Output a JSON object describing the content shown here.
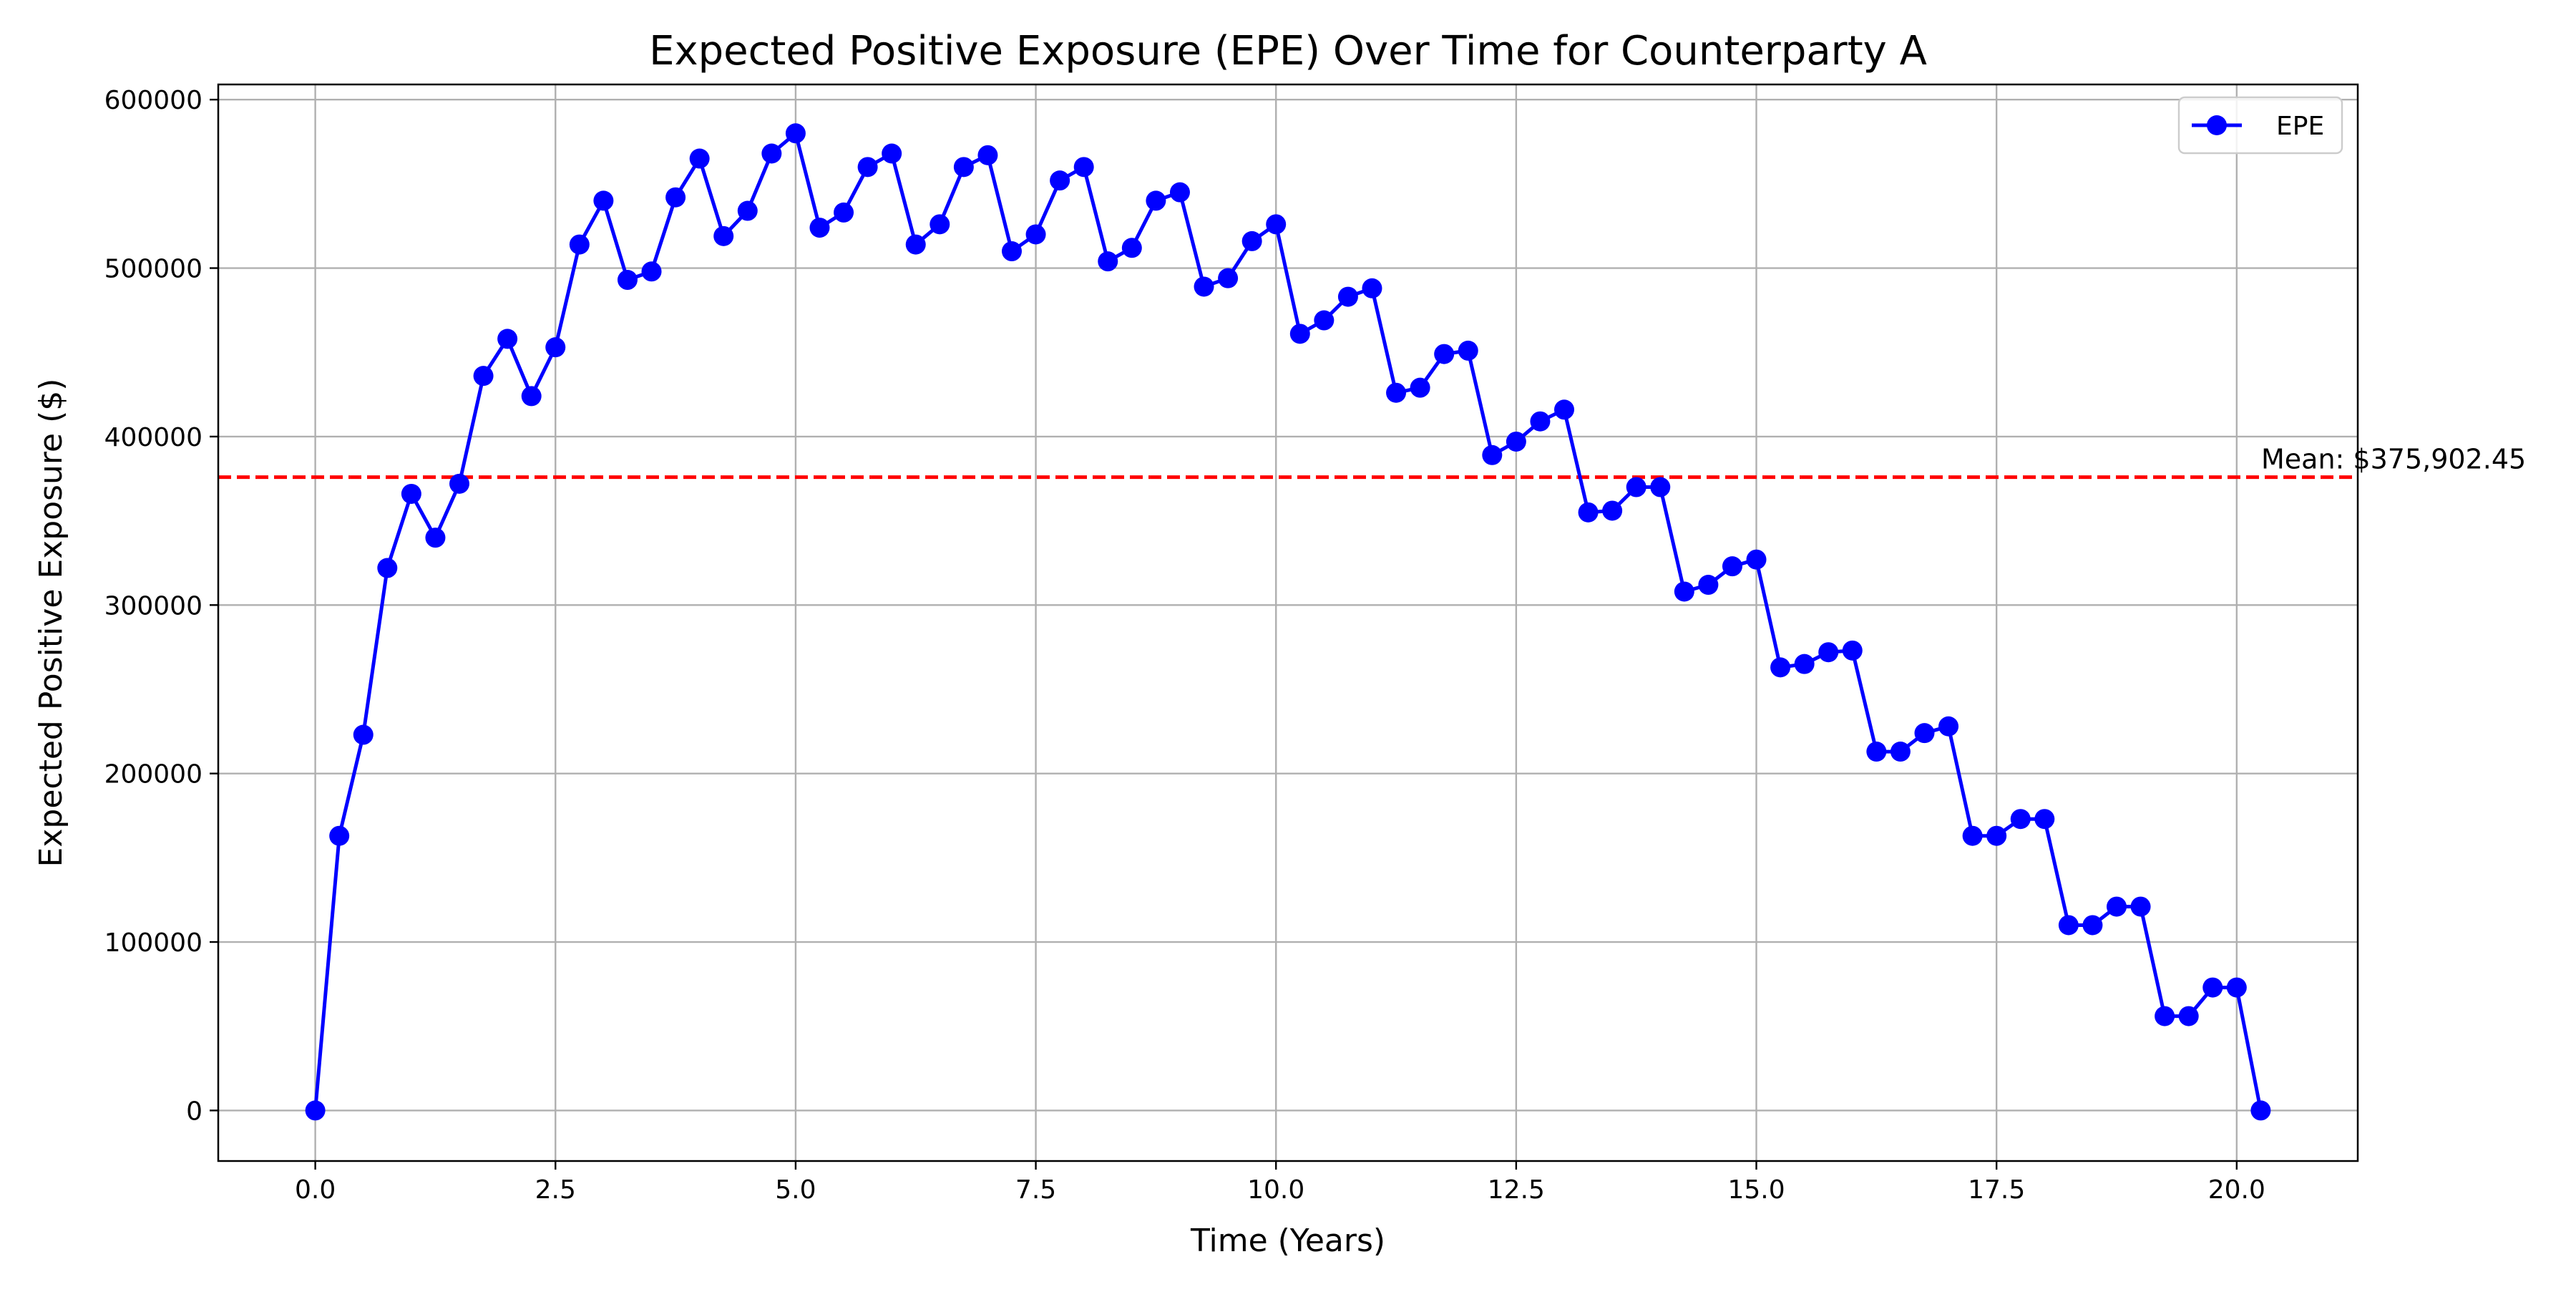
{
  "chart_data": {
    "type": "line",
    "title": "Expected Positive Exposure (EPE) Over Time for Counterparty A",
    "xlabel": "Time (Years)",
    "ylabel": "Expected Positive Exposure ($)",
    "xlim": [
      -1.01,
      21.26
    ],
    "ylim": [
      -30000,
      609000
    ],
    "xticks": [
      0.0,
      2.5,
      5.0,
      7.5,
      10.0,
      12.5,
      15.0,
      17.5,
      20.0
    ],
    "xtick_labels": [
      "0.0",
      "2.5",
      "5.0",
      "7.5",
      "10.0",
      "12.5",
      "15.0",
      "17.5",
      "20.0"
    ],
    "yticks": [
      0,
      100000,
      200000,
      300000,
      400000,
      500000,
      600000
    ],
    "ytick_labels": [
      "0",
      "100000",
      "200000",
      "300000",
      "400000",
      "500000",
      "600000"
    ],
    "grid": true,
    "legend_position": "top-right",
    "series": [
      {
        "name": "EPE",
        "color": "#0000ff",
        "marker": "circle",
        "x": [
          0.0,
          0.25,
          0.5,
          0.75,
          1.0,
          1.25,
          1.5,
          1.75,
          2.0,
          2.25,
          2.5,
          2.75,
          3.0,
          3.25,
          3.5,
          3.75,
          4.0,
          4.25,
          4.5,
          4.75,
          5.0,
          5.25,
          5.5,
          5.75,
          6.0,
          6.25,
          6.5,
          6.75,
          7.0,
          7.25,
          7.5,
          7.75,
          8.0,
          8.25,
          8.5,
          8.75,
          9.0,
          9.25,
          9.5,
          9.75,
          10.0,
          10.25,
          10.5,
          10.75,
          11.0,
          11.25,
          11.5,
          11.75,
          12.0,
          12.25,
          12.5,
          12.75,
          13.0,
          13.25,
          13.5,
          13.75,
          14.0,
          14.25,
          14.5,
          14.75,
          15.0,
          15.25,
          15.5,
          15.75,
          16.0,
          16.25,
          16.5,
          16.75,
          17.0,
          17.25,
          17.5,
          17.75,
          18.0,
          18.25,
          18.5,
          18.75,
          19.0,
          19.25,
          19.5,
          19.75,
          20.0,
          20.25
        ],
        "values": [
          0,
          163000,
          223000,
          322000,
          366000,
          340000,
          372000,
          436000,
          458000,
          424000,
          453000,
          514000,
          540000,
          493000,
          498000,
          542000,
          565000,
          519000,
          534000,
          568000,
          580000,
          524000,
          533000,
          560000,
          568000,
          514000,
          526000,
          560000,
          567000,
          510000,
          520000,
          552000,
          560000,
          504000,
          512000,
          540000,
          545000,
          489000,
          494000,
          516000,
          526000,
          461000,
          469000,
          483000,
          488000,
          426000,
          429000,
          449000,
          451000,
          389000,
          397000,
          409000,
          416000,
          355000,
          356000,
          370000,
          370000,
          308000,
          312000,
          323000,
          327000,
          263000,
          265000,
          272000,
          273000,
          213000,
          213000,
          224000,
          228000,
          163000,
          163000,
          173000,
          173000,
          110000,
          110000,
          121000,
          121000,
          56000,
          56000,
          73000,
          73000,
          0
        ]
      }
    ],
    "mean_line": {
      "value": 375902.45,
      "label": "Mean: $375,902.45",
      "color": "#ff0000",
      "style": "dashed"
    },
    "legend": [
      "EPE"
    ]
  }
}
